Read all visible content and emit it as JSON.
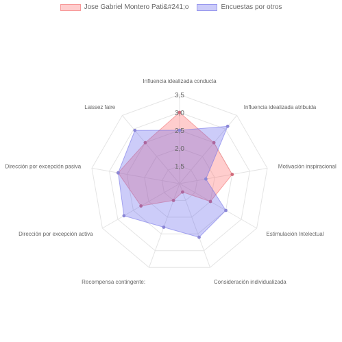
{
  "chart_data": {
    "type": "radar",
    "categories": [
      "Influencia idealizada conducta",
      "Influencia idealizada atribuida",
      "Motivación inspiracional",
      "Estimulación Intelectual",
      "Consideración individualizada",
      "Recompensa contingente:",
      "Dirección por excepción activa",
      "Dirección por excepción pasiva",
      "Laissez faire"
    ],
    "series": [
      {
        "name": "Jose Gabriel Montero Pati&#241;o",
        "values": [
          3.0,
          2.5,
          2.5,
          2.0,
          1.25,
          1.5,
          2.25,
          2.75,
          2.5
        ],
        "fill": "rgba(255,99,99,0.32)",
        "stroke": "rgba(240,110,110,0.55)",
        "point": "#d06a7a"
      },
      {
        "name": "Encuestas por otros",
        "values": [
          2.5,
          3.1,
          1.75,
          2.5,
          2.6,
          2.3,
          2.8,
          2.75,
          2.95
        ],
        "fill": "rgba(95,95,235,0.32)",
        "stroke": "rgba(110,110,230,0.55)",
        "point": "#8a86d6"
      }
    ],
    "r_range": [
      1.0,
      3.5
    ],
    "r_ticks": [
      "1,5",
      "2,0",
      "2,5",
      "3,0",
      "3,5"
    ],
    "grid": true,
    "legend_position": "top"
  }
}
